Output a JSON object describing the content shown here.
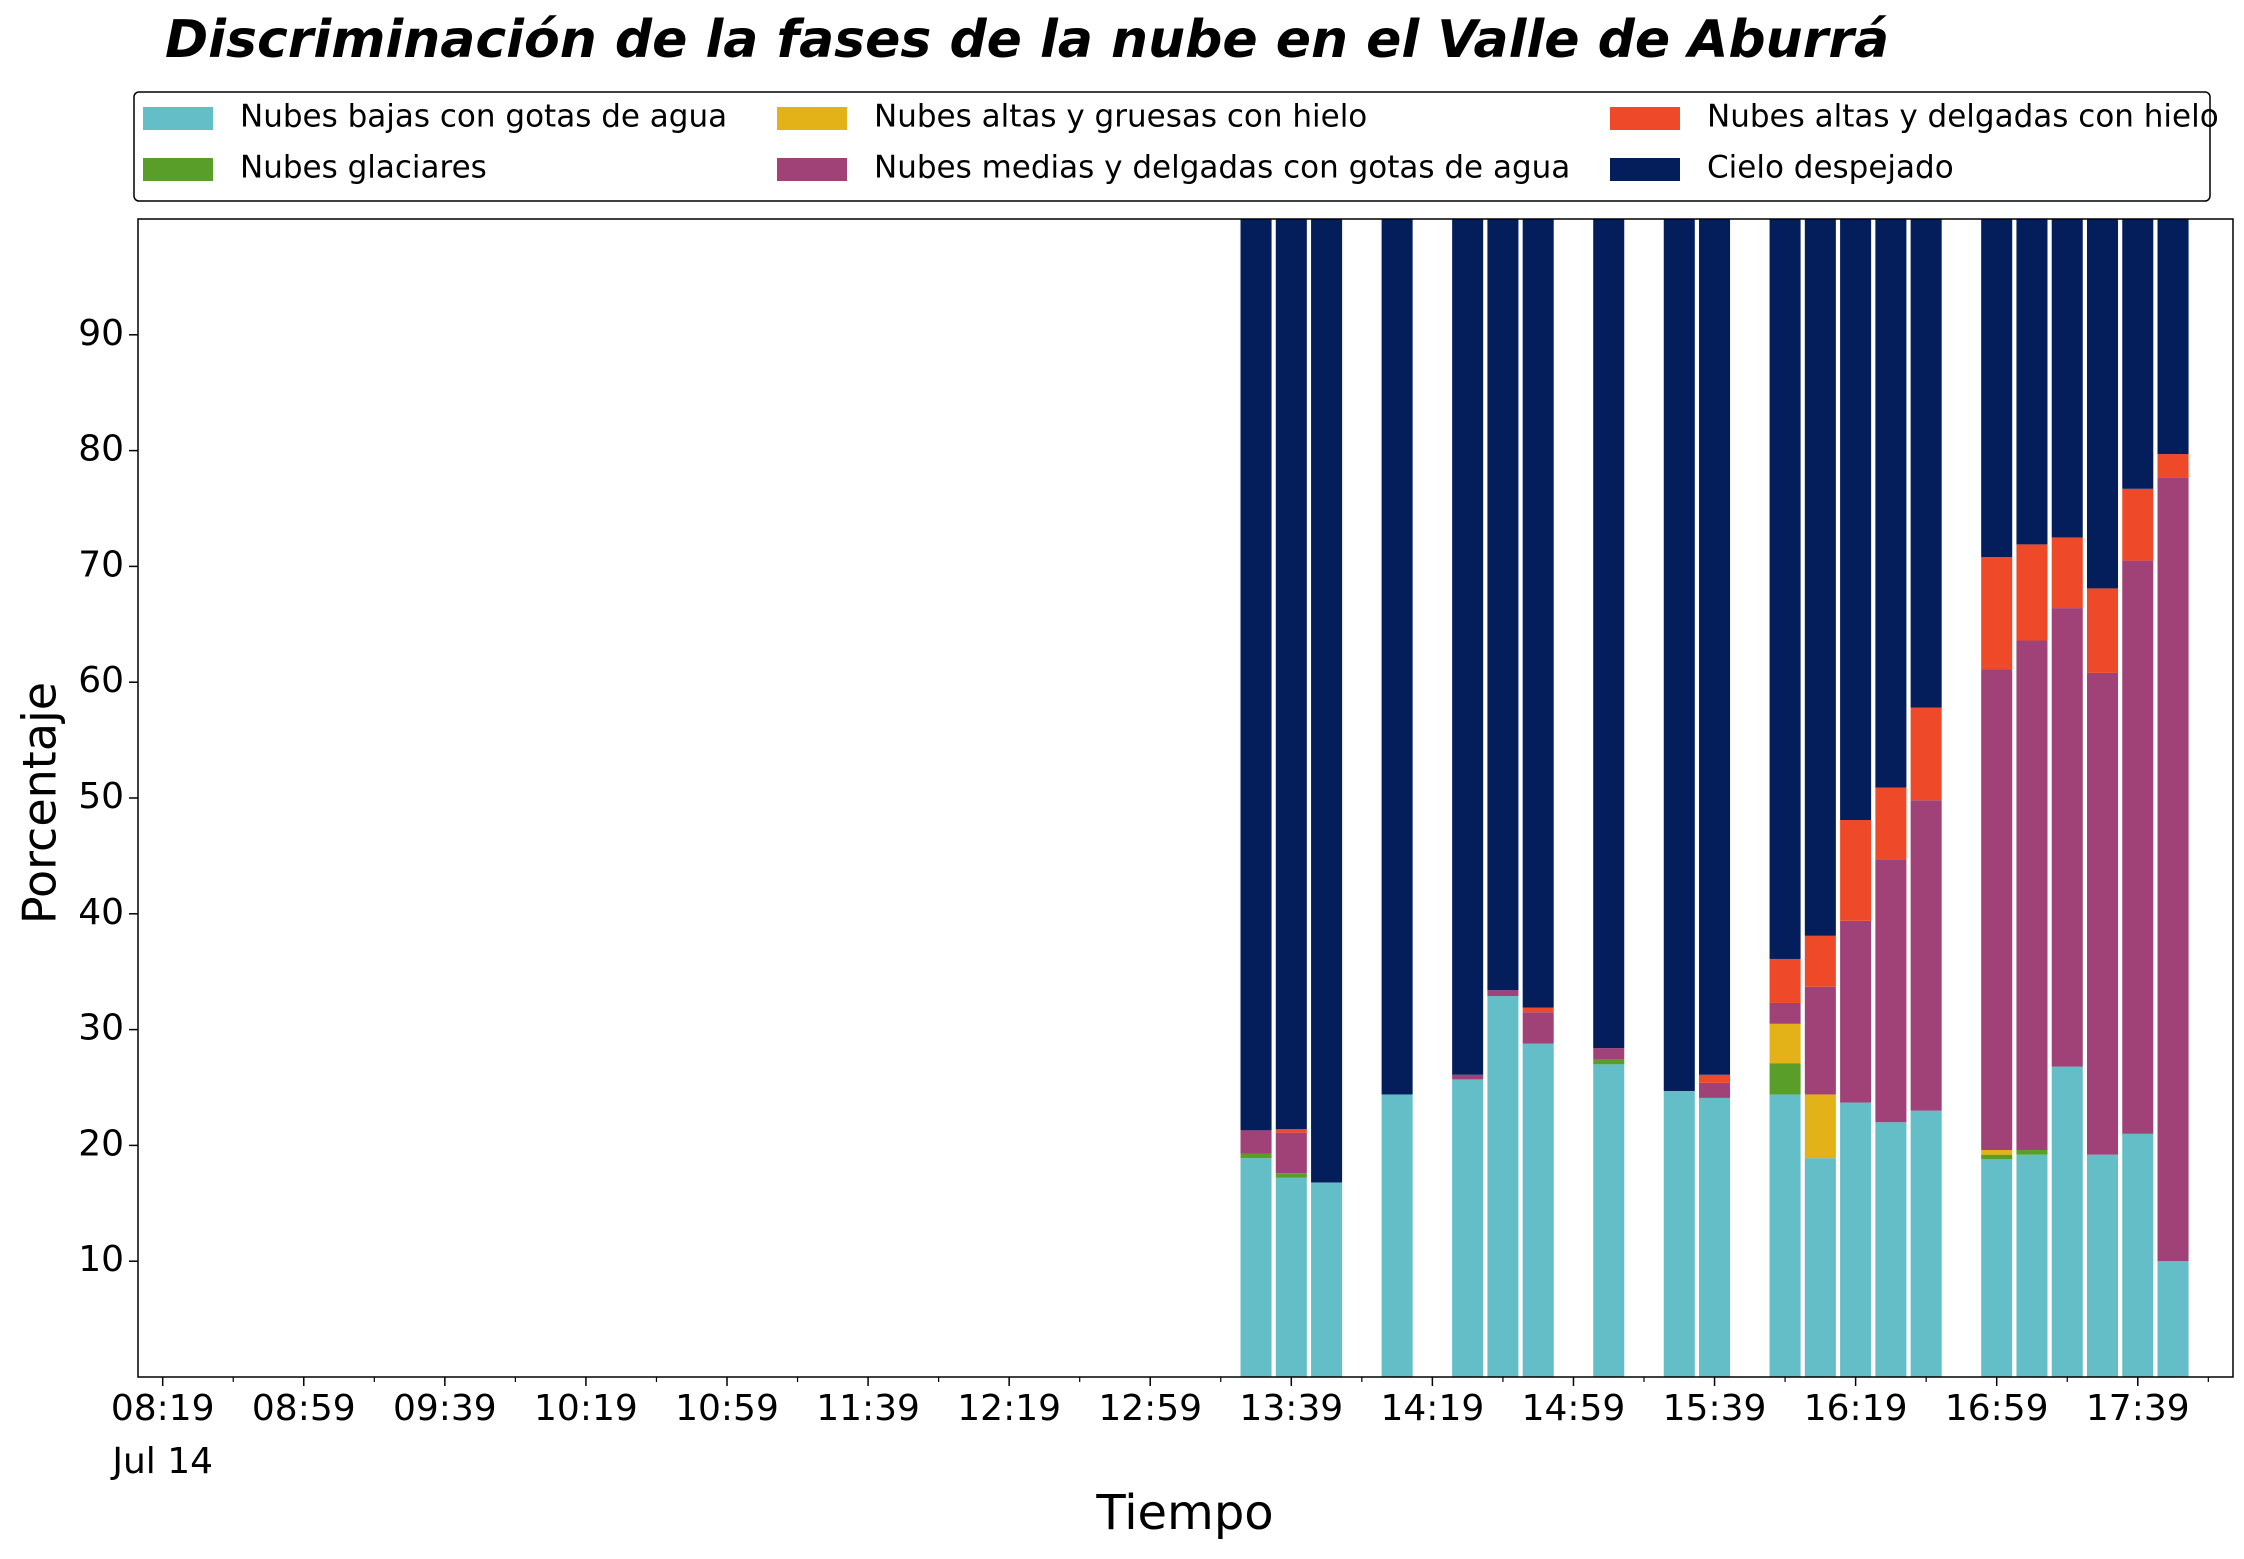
{
  "chart_data": {
    "type": "stacked_bar",
    "title": "Discriminación de la fases de la nube en el Valle de Aburrá",
    "xlabel": "Tiempo",
    "ylabel": "Porcentaje",
    "x": [
      "13:29",
      "13:39",
      "13:49",
      "14:09",
      "14:29",
      "14:39",
      "14:49",
      "15:09",
      "15:29",
      "15:39",
      "15:59",
      "16:09",
      "16:19",
      "16:29",
      "16:39",
      "16:59",
      "17:09",
      "17:19",
      "17:29",
      "17:39",
      "17:49"
    ],
    "xlim": [
      "08:12",
      "18:06"
    ],
    "xticks": [
      "08:19",
      "08:59",
      "09:39",
      "10:19",
      "10:59",
      "11:39",
      "12:19",
      "12:59",
      "13:39",
      "14:19",
      "14:59",
      "15:39",
      "16:19",
      "16:59",
      "17:39"
    ],
    "x_date_label": "Jul 14",
    "xminor_ticks": [
      "08:39",
      "09:19",
      "09:59",
      "10:39",
      "11:19",
      "11:59",
      "12:39",
      "13:19",
      "13:59",
      "14:39",
      "15:19",
      "15:59",
      "16:39",
      "17:19",
      "17:59"
    ],
    "ylim": [
      0,
      100
    ],
    "yticks": [
      10,
      20,
      30,
      40,
      50,
      60,
      70,
      80,
      90
    ],
    "legend": "top-outside",
    "series": [
      {
        "name": "Nubes bajas con gotas de agua",
        "color": "#64bec8",
        "values": [
          18.9,
          17.2,
          16.8,
          24.4,
          25.7,
          32.9,
          28.8,
          27.0,
          24.7,
          24.1,
          24.4,
          18.9,
          23.7,
          22.0,
          23.0,
          18.8,
          19.2,
          26.8,
          19.2,
          21.0,
          10.0
        ]
      },
      {
        "name": "Nubes glaciares",
        "color": "#5a9e2a",
        "values": [
          0.4,
          0.4,
          0,
          0,
          0,
          0,
          0,
          0.4,
          0,
          0,
          2.7,
          0,
          0,
          0,
          0,
          0.4,
          0.4,
          0,
          0,
          0,
          0
        ]
      },
      {
        "name": "Nubes altas y gruesas con hielo",
        "color": "#e2b218",
        "values": [
          0,
          0,
          0,
          0,
          0,
          0,
          0,
          0,
          0,
          0,
          3.4,
          5.5,
          0,
          0,
          0,
          0.4,
          0,
          0,
          0,
          0,
          0
        ]
      },
      {
        "name": "Nubes medias y delgadas con gotas de agua",
        "color": "#a04277",
        "values": [
          2.0,
          3.5,
          0,
          0,
          0.4,
          0.5,
          2.7,
          1.0,
          0,
          1.3,
          1.8,
          9.3,
          15.7,
          22.7,
          26.8,
          41.5,
          44.0,
          39.6,
          41.6,
          49.5,
          67.7
        ]
      },
      {
        "name": "Nubes altas y delgadas con hielo",
        "color": "#ee4a2a",
        "values": [
          0,
          0.3,
          0,
          0,
          0,
          0,
          0.4,
          0,
          0,
          0.7,
          3.8,
          4.4,
          8.7,
          6.2,
          8.0,
          9.7,
          8.3,
          6.1,
          7.3,
          6.2,
          2.0
        ]
      },
      {
        "name": "Cielo despejado",
        "color": "#041e5c",
        "values": [
          78.7,
          78.6,
          83.2,
          75.6,
          73.9,
          66.6,
          68.1,
          71.6,
          75.3,
          73.9,
          63.9,
          61.9,
          51.9,
          49.1,
          42.2,
          29.2,
          28.1,
          27.5,
          31.9,
          23.3,
          20.3
        ]
      }
    ]
  }
}
